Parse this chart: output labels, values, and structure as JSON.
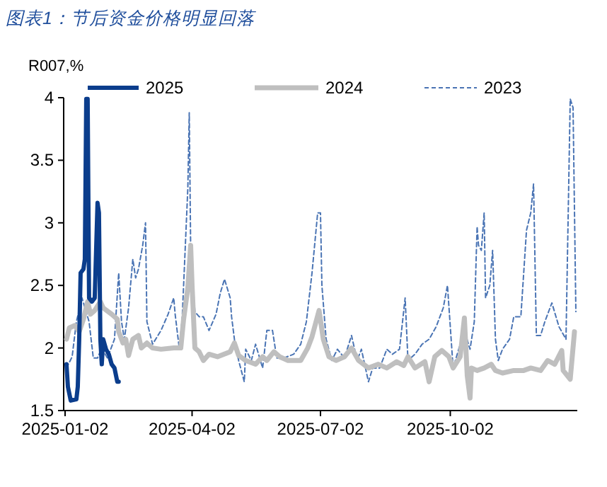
{
  "chart_data": {
    "type": "line",
    "title": "图表1：节后资金价格明显回落",
    "ylabel": "R007,%",
    "xlim": [
      "2025-01-01",
      "2025-12-31"
    ],
    "xticks": [
      "2025-01-02",
      "2025-04-02",
      "2025-07-02",
      "2025-10-02"
    ],
    "ylim": [
      1.5,
      4
    ],
    "yticks": [
      1.5,
      2,
      2.5,
      3,
      3.5,
      4
    ],
    "legend": "top",
    "marker": "none",
    "series": [
      {
        "name": "2025",
        "color": "#0b3d8c",
        "line_style": "solid",
        "x": [
          "2025-01-03",
          "2025-01-04",
          "2025-01-06",
          "2025-01-10",
          "2025-01-11",
          "2025-01-12",
          "2025-01-13",
          "2025-01-15",
          "2025-01-16",
          "2025-01-17",
          "2025-01-18",
          "2025-01-19",
          "2025-01-21",
          "2025-01-23",
          "2025-01-25",
          "2025-01-26",
          "2025-01-27",
          "2025-01-28",
          "2025-01-29",
          "2025-01-31",
          "2025-02-02",
          "2025-02-04",
          "2025-02-06",
          "2025-02-08",
          "2025-02-09"
        ],
        "values": [
          1.87,
          1.69,
          1.58,
          1.59,
          1.69,
          2.07,
          2.6,
          2.63,
          2.71,
          3.99,
          3.99,
          2.4,
          2.37,
          2.4,
          3.16,
          3.08,
          2.07,
          1.87,
          2.07,
          1.99,
          1.95,
          1.87,
          1.84,
          1.73,
          1.73
        ]
      },
      {
        "name": "2024",
        "color": "#bfbfbf",
        "line_style": "solid",
        "x": [
          "2025-01-03",
          "2025-01-05",
          "2025-01-09",
          "2025-01-12",
          "2025-01-15",
          "2025-01-18",
          "2025-01-20",
          "2025-01-23",
          "2025-01-27",
          "2025-01-29",
          "2025-02-04",
          "2025-02-08",
          "2025-02-09",
          "2025-02-12",
          "2025-02-14",
          "2025-02-16",
          "2025-02-19",
          "2025-02-23",
          "2025-02-25",
          "2025-03-01",
          "2025-03-05",
          "2025-03-11",
          "2025-03-20",
          "2025-03-25",
          "2025-03-27",
          "2025-03-30",
          "2025-04-01",
          "2025-04-02",
          "2025-04-04",
          "2025-04-07",
          "2025-04-10",
          "2025-04-14",
          "2025-04-20",
          "2025-04-29",
          "2025-05-02",
          "2025-05-05",
          "2025-05-10",
          "2025-05-17",
          "2025-05-22",
          "2025-05-25",
          "2025-05-30",
          "2025-06-03",
          "2025-06-09",
          "2025-06-18",
          "2025-06-23",
          "2025-06-26",
          "2025-07-01",
          "2025-07-04",
          "2025-07-08",
          "2025-07-13",
          "2025-07-19",
          "2025-07-24",
          "2025-07-29",
          "2025-08-05",
          "2025-08-12",
          "2025-08-18",
          "2025-08-25",
          "2025-08-30",
          "2025-09-02",
          "2025-09-07",
          "2025-09-14",
          "2025-09-17",
          "2025-09-21",
          "2025-09-26",
          "2025-10-01",
          "2025-10-04",
          "2025-10-09",
          "2025-10-12",
          "2025-10-14",
          "2025-10-16",
          "2025-10-17",
          "2025-10-21",
          "2025-10-26",
          "2025-10-31",
          "2025-11-03",
          "2025-11-08",
          "2025-11-16",
          "2025-11-23",
          "2025-11-28",
          "2025-12-05",
          "2025-12-10",
          "2025-12-15",
          "2025-12-20",
          "2025-12-21",
          "2025-12-26",
          "2025-12-29"
        ],
        "values": [
          2.07,
          2.16,
          2.18,
          2.13,
          2.23,
          2.37,
          2.27,
          2.3,
          2.37,
          2.32,
          2.27,
          2.23,
          2.13,
          2.04,
          2.07,
          1.94,
          2.07,
          2.1,
          2.0,
          2.04,
          2.0,
          1.99,
          2.0,
          2.0,
          2.23,
          2.48,
          2.82,
          2.5,
          2.0,
          1.97,
          1.9,
          1.95,
          1.93,
          1.97,
          2.04,
          1.94,
          1.9,
          1.87,
          1.93,
          1.9,
          1.97,
          1.93,
          1.9,
          1.9,
          2.0,
          2.09,
          2.3,
          2.07,
          1.93,
          1.9,
          1.93,
          2.0,
          1.9,
          1.84,
          1.87,
          1.84,
          1.89,
          1.86,
          1.93,
          1.84,
          1.89,
          1.73,
          1.93,
          1.98,
          1.93,
          1.84,
          1.93,
          2.24,
          1.78,
          1.6,
          1.84,
          1.82,
          1.84,
          1.87,
          1.82,
          1.8,
          1.82,
          1.82,
          1.84,
          1.82,
          1.9,
          1.87,
          1.98,
          1.82,
          1.75,
          2.13
        ]
      },
      {
        "name": "2023",
        "color": "#4a74b4",
        "line_style": "dashed",
        "x": [
          "2025-01-03",
          "2025-01-07",
          "2025-01-10",
          "2025-01-14",
          "2025-01-19",
          "2025-01-22",
          "2025-01-25",
          "2025-01-28",
          "2025-02-01",
          "2025-02-06",
          "2025-02-09",
          "2025-02-11",
          "2025-02-13",
          "2025-02-16",
          "2025-02-19",
          "2025-02-21",
          "2025-02-23",
          "2025-02-26",
          "2025-02-28",
          "2025-03-01",
          "2025-03-05",
          "2025-03-11",
          "2025-03-16",
          "2025-03-20",
          "2025-03-21",
          "2025-03-24",
          "2025-03-26",
          "2025-03-30",
          "2025-03-31",
          "2025-04-01",
          "2025-04-04",
          "2025-04-07",
          "2025-04-10",
          "2025-04-14",
          "2025-04-19",
          "2025-04-22",
          "2025-04-25",
          "2025-04-29",
          "2025-04-30",
          "2025-05-02",
          "2025-05-05",
          "2025-05-09",
          "2025-05-10",
          "2025-05-14",
          "2025-05-17",
          "2025-05-22",
          "2025-05-25",
          "2025-05-29",
          "2025-06-01",
          "2025-06-06",
          "2025-06-13",
          "2025-06-18",
          "2025-06-22",
          "2025-06-26",
          "2025-06-30",
          "2025-07-02",
          "2025-07-03",
          "2025-07-06",
          "2025-07-10",
          "2025-07-14",
          "2025-07-19",
          "2025-07-24",
          "2025-07-28",
          "2025-07-31",
          "2025-08-05",
          "2025-08-08",
          "2025-08-13",
          "2025-08-18",
          "2025-08-22",
          "2025-08-27",
          "2025-08-31",
          "2025-09-02",
          "2025-09-07",
          "2025-09-12",
          "2025-09-17",
          "2025-09-22",
          "2025-09-27",
          "2025-09-30",
          "2025-10-04",
          "2025-10-09",
          "2025-10-13",
          "2025-10-16",
          "2025-10-19",
          "2025-10-21",
          "2025-10-22",
          "2025-10-24",
          "2025-10-26",
          "2025-10-27",
          "2025-10-30",
          "2025-11-01",
          "2025-11-03",
          "2025-11-05",
          "2025-11-08",
          "2025-11-13",
          "2025-11-16",
          "2025-11-21",
          "2025-11-25",
          "2025-11-28",
          "2025-11-30",
          "2025-12-02",
          "2025-12-05",
          "2025-12-08",
          "2025-12-13",
          "2025-12-18",
          "2025-12-23",
          "2025-12-26",
          "2025-12-28",
          "2025-12-30"
        ],
        "values": [
          1.84,
          1.93,
          2.21,
          2.4,
          2.21,
          1.92,
          1.92,
          2.0,
          1.92,
          2.07,
          2.6,
          2.21,
          2.07,
          2.32,
          2.71,
          2.56,
          2.63,
          2.82,
          3.0,
          2.21,
          2.03,
          2.14,
          2.27,
          2.4,
          2.27,
          1.99,
          2.24,
          3.28,
          3.88,
          2.8,
          2.29,
          2.25,
          2.25,
          2.14,
          2.27,
          2.44,
          2.55,
          2.4,
          2.25,
          2.07,
          1.9,
          1.73,
          1.99,
          1.9,
          2.03,
          1.84,
          2.14,
          2.14,
          1.92,
          1.92,
          1.95,
          2.03,
          2.21,
          2.6,
          3.08,
          3.08,
          2.5,
          2.07,
          1.9,
          1.99,
          1.92,
          2.1,
          1.9,
          1.99,
          1.73,
          1.84,
          1.84,
          1.99,
          1.95,
          1.99,
          2.4,
          1.9,
          1.95,
          2.03,
          2.07,
          2.17,
          2.32,
          2.5,
          1.84,
          2.03,
          2.1,
          1.99,
          2.21,
          2.97,
          2.82,
          2.78,
          3.08,
          2.4,
          2.5,
          2.78,
          2.07,
          1.9,
          1.99,
          2.07,
          2.25,
          2.25,
          2.94,
          3.08,
          3.31,
          2.1,
          2.1,
          2.21,
          2.36,
          2.17,
          2.07,
          3.99,
          3.92,
          2.29
        ]
      }
    ]
  }
}
